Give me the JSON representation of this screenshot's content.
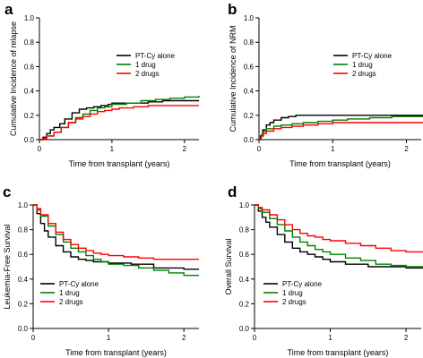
{
  "chart_data": [
    {
      "type": "line",
      "panel": "a",
      "xlabel": "Time from transplant (years)",
      "ylabel": "Cumulative Incidence of relapse",
      "xlim": [
        0,
        2.2
      ],
      "ylim": [
        0,
        1.0
      ],
      "xticks": [
        0,
        1,
        2
      ],
      "yticks": [
        0.0,
        0.2,
        0.4,
        0.6,
        0.8,
        1.0
      ],
      "legend_position": "top-right",
      "series": [
        {
          "name": "PT-Cy alone",
          "color": "#000000",
          "x": [
            0,
            0.05,
            0.1,
            0.15,
            0.2,
            0.28,
            0.35,
            0.45,
            0.55,
            0.65,
            0.75,
            0.85,
            0.95,
            1.0,
            1.2,
            1.5,
            1.7,
            2.2
          ],
          "y": [
            0,
            0.02,
            0.05,
            0.08,
            0.1,
            0.13,
            0.17,
            0.22,
            0.25,
            0.26,
            0.27,
            0.28,
            0.29,
            0.3,
            0.3,
            0.31,
            0.32,
            0.32
          ]
        },
        {
          "name": "1 drug",
          "color": "#008000",
          "x": [
            0,
            0.05,
            0.1,
            0.2,
            0.3,
            0.4,
            0.5,
            0.6,
            0.7,
            0.8,
            0.9,
            1.0,
            1.2,
            1.4,
            1.6,
            1.8,
            2.0,
            2.2
          ],
          "y": [
            0,
            0.01,
            0.03,
            0.06,
            0.1,
            0.14,
            0.18,
            0.21,
            0.24,
            0.26,
            0.27,
            0.29,
            0.3,
            0.32,
            0.33,
            0.34,
            0.35,
            0.36
          ]
        },
        {
          "name": "2 drugs",
          "color": "#ff0000",
          "x": [
            0,
            0.05,
            0.1,
            0.2,
            0.3,
            0.4,
            0.5,
            0.6,
            0.7,
            0.8,
            0.9,
            1.0,
            1.1,
            1.3,
            1.5,
            2.2
          ],
          "y": [
            0,
            0.01,
            0.03,
            0.06,
            0.1,
            0.14,
            0.17,
            0.19,
            0.21,
            0.23,
            0.24,
            0.25,
            0.26,
            0.27,
            0.28,
            0.28
          ]
        }
      ]
    },
    {
      "type": "line",
      "panel": "b",
      "xlabel": "Time from transplant (years)",
      "ylabel": "Cumulative Incidence of NRM",
      "xlim": [
        0,
        2.2
      ],
      "ylim": [
        0,
        1.0
      ],
      "xticks": [
        0,
        1,
        2
      ],
      "yticks": [
        0.0,
        0.2,
        0.4,
        0.6,
        0.8,
        1.0
      ],
      "legend_position": "top-right",
      "series": [
        {
          "name": "PT-Cy alone",
          "color": "#000000",
          "x": [
            0,
            0.02,
            0.05,
            0.1,
            0.15,
            0.2,
            0.3,
            0.4,
            0.5,
            0.7,
            2.25
          ],
          "y": [
            0,
            0.03,
            0.08,
            0.12,
            0.14,
            0.16,
            0.18,
            0.19,
            0.2,
            0.2,
            0.2
          ]
        },
        {
          "name": "1 drug",
          "color": "#008000",
          "x": [
            0,
            0.03,
            0.06,
            0.1,
            0.2,
            0.3,
            0.45,
            0.6,
            0.8,
            1.0,
            1.2,
            1.5,
            1.8,
            2.25
          ],
          "y": [
            0,
            0.04,
            0.07,
            0.09,
            0.11,
            0.12,
            0.13,
            0.14,
            0.15,
            0.16,
            0.17,
            0.18,
            0.19,
            0.19
          ]
        },
        {
          "name": "2 drugs",
          "color": "#ff0000",
          "x": [
            0,
            0.03,
            0.06,
            0.1,
            0.2,
            0.3,
            0.45,
            0.6,
            0.8,
            1.0,
            1.2,
            2.25
          ],
          "y": [
            0,
            0.03,
            0.05,
            0.07,
            0.09,
            0.1,
            0.11,
            0.12,
            0.13,
            0.14,
            0.14,
            0.14
          ]
        }
      ]
    },
    {
      "type": "line",
      "panel": "c",
      "xlabel": "Time from transplant (years)",
      "ylabel": "Leukemia-Free Survival",
      "xlim": [
        0,
        2.2
      ],
      "ylim": [
        0,
        1.0
      ],
      "xticks": [
        0,
        1,
        2
      ],
      "yticks": [
        0.0,
        0.2,
        0.4,
        0.6,
        0.8,
        1.0
      ],
      "legend_position": "bottom-left",
      "series": [
        {
          "name": "PT-Cy alone",
          "color": "#000000",
          "x": [
            0,
            0.05,
            0.1,
            0.15,
            0.2,
            0.3,
            0.4,
            0.5,
            0.6,
            0.7,
            0.8,
            0.9,
            1.0,
            1.3,
            1.6,
            2.0,
            2.2
          ],
          "y": [
            1.0,
            0.93,
            0.85,
            0.79,
            0.74,
            0.67,
            0.62,
            0.58,
            0.56,
            0.55,
            0.54,
            0.54,
            0.53,
            0.52,
            0.49,
            0.48,
            0.48
          ]
        },
        {
          "name": "1 drug",
          "color": "#008000",
          "x": [
            0,
            0.05,
            0.1,
            0.2,
            0.3,
            0.4,
            0.5,
            0.6,
            0.7,
            0.8,
            0.9,
            1.0,
            1.2,
            1.4,
            1.6,
            1.8,
            2.0,
            2.2
          ],
          "y": [
            1.0,
            0.96,
            0.91,
            0.83,
            0.76,
            0.7,
            0.65,
            0.62,
            0.59,
            0.56,
            0.54,
            0.52,
            0.51,
            0.49,
            0.47,
            0.45,
            0.43,
            0.43
          ]
        },
        {
          "name": "2 drugs",
          "color": "#ff0000",
          "x": [
            0,
            0.05,
            0.1,
            0.2,
            0.3,
            0.4,
            0.5,
            0.6,
            0.7,
            0.8,
            0.9,
            1.0,
            1.2,
            1.4,
            1.6,
            2.2
          ],
          "y": [
            1.0,
            0.97,
            0.92,
            0.85,
            0.78,
            0.72,
            0.68,
            0.65,
            0.63,
            0.61,
            0.6,
            0.59,
            0.58,
            0.57,
            0.56,
            0.56
          ]
        }
      ]
    },
    {
      "type": "line",
      "panel": "d",
      "xlabel": "Time from transplant (years)",
      "ylabel": "Overall Survival",
      "xlim": [
        0,
        2.2
      ],
      "ylim": [
        0,
        1.0
      ],
      "xticks": [
        0,
        1,
        2
      ],
      "yticks": [
        0.0,
        0.2,
        0.4,
        0.6,
        0.8,
        1.0
      ],
      "legend_position": "bottom-left",
      "series": [
        {
          "name": "PT-Cy alone",
          "color": "#000000",
          "x": [
            0,
            0.05,
            0.1,
            0.15,
            0.2,
            0.3,
            0.4,
            0.5,
            0.6,
            0.7,
            0.8,
            0.9,
            1.0,
            1.2,
            1.5,
            2.0,
            2.25
          ],
          "y": [
            1.0,
            0.95,
            0.9,
            0.86,
            0.82,
            0.76,
            0.7,
            0.65,
            0.62,
            0.6,
            0.58,
            0.56,
            0.54,
            0.52,
            0.5,
            0.49,
            0.49
          ]
        },
        {
          "name": "1 drug",
          "color": "#008000",
          "x": [
            0,
            0.05,
            0.1,
            0.2,
            0.3,
            0.4,
            0.5,
            0.6,
            0.7,
            0.8,
            0.9,
            1.0,
            1.2,
            1.4,
            1.6,
            1.8,
            2.0,
            2.25
          ],
          "y": [
            1.0,
            0.97,
            0.94,
            0.89,
            0.84,
            0.79,
            0.74,
            0.7,
            0.67,
            0.64,
            0.62,
            0.6,
            0.57,
            0.55,
            0.52,
            0.51,
            0.5,
            0.5
          ]
        },
        {
          "name": "2 drugs",
          "color": "#ff0000",
          "x": [
            0,
            0.05,
            0.1,
            0.2,
            0.3,
            0.4,
            0.5,
            0.6,
            0.7,
            0.8,
            0.9,
            1.0,
            1.2,
            1.4,
            1.6,
            1.8,
            2.0,
            2.25
          ],
          "y": [
            1.0,
            0.98,
            0.96,
            0.92,
            0.88,
            0.84,
            0.8,
            0.77,
            0.75,
            0.74,
            0.72,
            0.71,
            0.69,
            0.67,
            0.65,
            0.63,
            0.62,
            0.61
          ]
        }
      ]
    }
  ]
}
